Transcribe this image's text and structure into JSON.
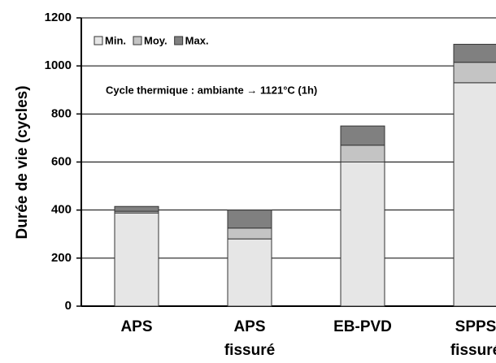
{
  "chart_data": {
    "type": "bar",
    "stacked": true,
    "y_label": "Durée de vie (cycles)",
    "annotation": "Cycle thermique : ambiante → 1121°C (1h)",
    "categories": [
      "APS",
      "APS fissuré",
      "EB-PVD",
      "SPPS fissuré"
    ],
    "series": [
      {
        "name": "Min.",
        "color": "#e6e6e6",
        "values": [
          388,
          280,
          600,
          930
        ]
      },
      {
        "name": "Moy.",
        "color": "#c4c4c4",
        "values": [
          7,
          45,
          70,
          85
        ]
      },
      {
        "name": "Max.",
        "color": "#808080",
        "values": [
          20,
          75,
          80,
          75
        ]
      }
    ],
    "ylim": [
      0,
      1200
    ],
    "yticks": [
      0,
      200,
      400,
      600,
      800,
      1000,
      1200
    ],
    "grid": true,
    "legend": "upper left"
  }
}
